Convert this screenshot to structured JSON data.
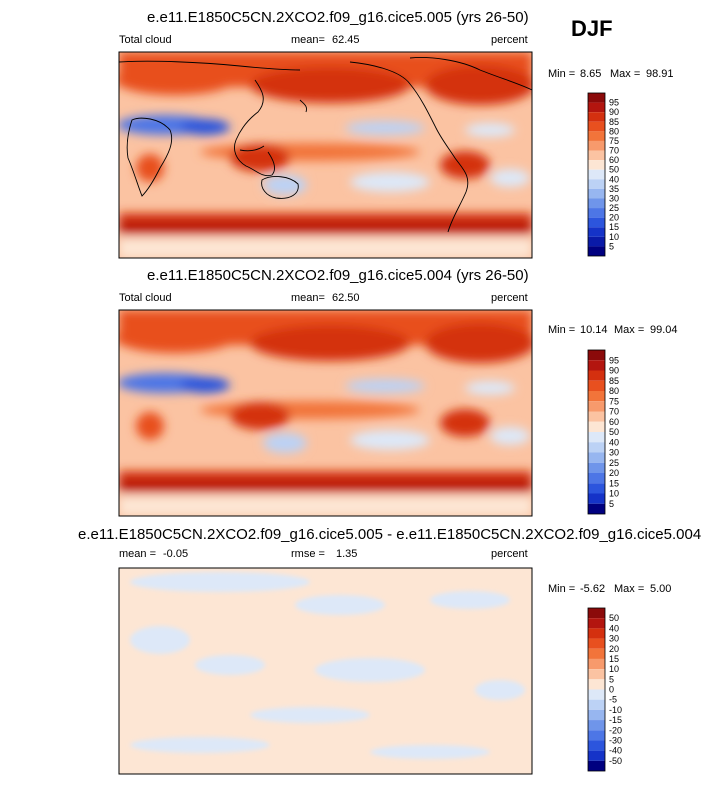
{
  "season": "DJF",
  "chart_data": [
    {
      "type": "heatmap",
      "title": "e.e11.E1850C5CN.2XCO2.f09_g16.cice5.005 (yrs 26-50)",
      "left_label": "Total cloud",
      "mean_label": "mean=",
      "mean_value": "62.45",
      "units": "percent",
      "min_label": "Min =",
      "min_value": "8.65",
      "max_label": "Max =",
      "max_value": "98.91",
      "colorbar_levels": [
        "95",
        "90",
        "85",
        "80",
        "75",
        "70",
        "60",
        "50",
        "40",
        "35",
        "30",
        "25",
        "20",
        "15",
        "10",
        "5"
      ],
      "colorbar_colors": [
        "#8b0a0a",
        "#b3150f",
        "#d4300f",
        "#e8501f",
        "#f2743a",
        "#f79a6c",
        "#fbc3a2",
        "#fde6d4",
        "#dde8f8",
        "#bcd2f5",
        "#97b6f0",
        "#6f95ea",
        "#4d76e6",
        "#2c55dd",
        "#1533c8",
        "#0a1aa8",
        "#000080"
      ]
    },
    {
      "type": "heatmap",
      "title": "e.e11.E1850C5CN.2XCO2.f09_g16.cice5.004 (yrs 26-50)",
      "left_label": "Total cloud",
      "mean_label": "mean=",
      "mean_value": "62.50",
      "units": "percent",
      "min_label": "Min =",
      "min_value": "10.14",
      "max_label": "Max =",
      "max_value": "99.04",
      "colorbar_levels": [
        "95",
        "90",
        "85",
        "80",
        "75",
        "70",
        "60",
        "50",
        "40",
        "30",
        "25",
        "20",
        "15",
        "10",
        "5"
      ],
      "colorbar_colors": [
        "#8b0a0a",
        "#b3150f",
        "#d4300f",
        "#e8501f",
        "#f2743a",
        "#f79a6c",
        "#fbc3a2",
        "#fde6d4",
        "#dde8f8",
        "#bcd2f5",
        "#97b6f0",
        "#6f95ea",
        "#4d76e6",
        "#2c55dd",
        "#1533c8",
        "#000080"
      ]
    },
    {
      "type": "heatmap",
      "title": "e.e11.E1850C5CN.2XCO2.f09_g16.cice5.005 - e.e11.E1850C5CN.2XCO2.f09_g16.cice5.004",
      "left_label": "mean =",
      "left_value": "-0.05",
      "mean_label": "rmse =",
      "mean_value": "1.35",
      "units": "percent",
      "min_label": "Min =",
      "min_value": "-5.62",
      "max_label": "Max =",
      "max_value": "5.00",
      "colorbar_levels": [
        "50",
        "40",
        "30",
        "20",
        "15",
        "10",
        "5",
        "0",
        "-5",
        "-10",
        "-15",
        "-20",
        "-30",
        "-40",
        "-50"
      ],
      "colorbar_colors": [
        "#8b0a0a",
        "#b3150f",
        "#d4300f",
        "#e8501f",
        "#f2743a",
        "#f79a6c",
        "#fbc3a2",
        "#fde6d4",
        "#dde8f8",
        "#bcd2f5",
        "#97b6f0",
        "#6f95ea",
        "#4d76e6",
        "#2c55dd",
        "#1533c8",
        "#000080"
      ]
    }
  ]
}
